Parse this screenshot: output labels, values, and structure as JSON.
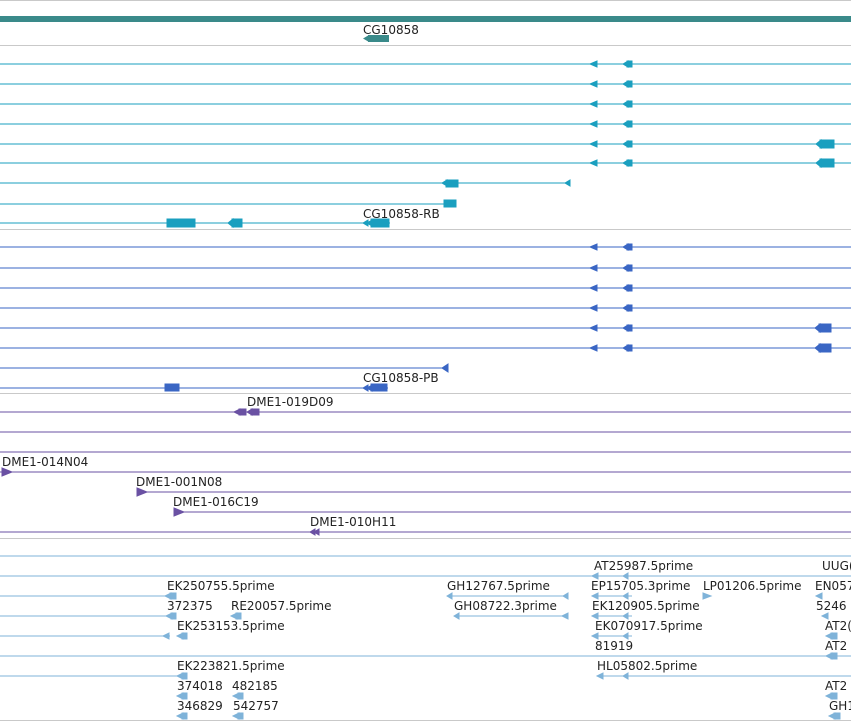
{
  "colors": {
    "gene": "#3a8a8a",
    "transcript_rb": "#1a9fbf",
    "transcript_pb": "#3a66c4",
    "bac": "#6a51a3",
    "est": "#7fb3d9",
    "divider": "#c9c9c9"
  },
  "labels": {
    "gene": "CG10858",
    "rna": "CG10858-RB",
    "protein": "CG10858-PB",
    "bac1": "DME1-019D09",
    "bac2": "DME1-014N04",
    "bac3": "DME1-001N08",
    "bac4": "DME1-016C19",
    "bac5": "DME1-010H11",
    "est_at25987": "AT25987.5prime",
    "est_uug": "UUG(",
    "est_ek250755": "EK250755.5prime",
    "est_gh12767": "GH12767.5prime",
    "est_ep15705": "EP15705.3prime",
    "est_lp01206": "LP01206.5prime",
    "est_en057": "EN057",
    "est_372375": "372375",
    "est_re20057": "RE20057.5prime",
    "est_gh08722": "GH08722.3prime",
    "est_ek120905": "EK120905.5prime",
    "est_5246": "5246",
    "est_ek253153": "EK253153.5prime",
    "est_ek070917": "EK070917.5prime",
    "est_at2a": "AT2(",
    "est_81919": "81919",
    "est_at2b": "AT2",
    "est_ek223821": "EK223821.5prime",
    "est_hl05802": "HL05802.5prime",
    "est_374018": "374018",
    "est_482185": "482185",
    "est_at2c": "AT2",
    "est_346829": "346829",
    "est_542757": "542757",
    "est_gh1": "GH1"
  }
}
